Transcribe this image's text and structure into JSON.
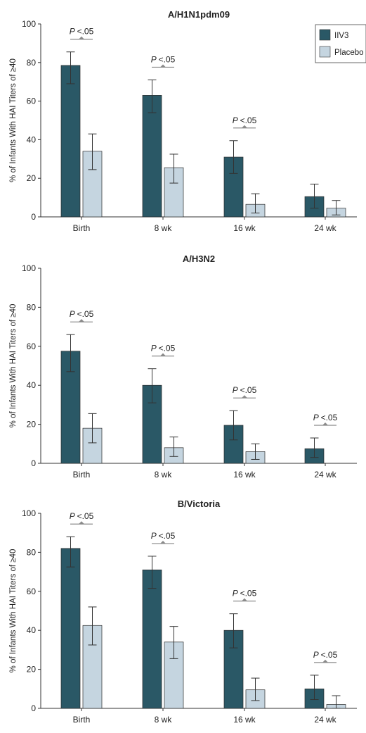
{
  "legend": [
    {
      "label": "IIV3",
      "color": "#2a5866"
    },
    {
      "label": "Placebo",
      "color": "#c5d5e0"
    }
  ],
  "ylabel": "% of Infants With HAI Titers of ≥40",
  "chart_data": [
    {
      "type": "bar",
      "title": "A/H1N1pdm09",
      "ylabel": "% of Infants With HAI Titers of ≥40",
      "ylim": [
        0,
        100
      ],
      "yticks": [
        0,
        20,
        40,
        60,
        80,
        100
      ],
      "categories": [
        "Birth",
        "8 wk",
        "16 wk",
        "24 wk"
      ],
      "series": [
        {
          "name": "IIV3",
          "color": "#2a5866",
          "values": [
            78.5,
            63,
            31,
            10.5
          ],
          "ci_low": [
            69,
            54,
            22.5,
            4.5
          ],
          "ci_high": [
            85.5,
            71,
            39.5,
            17
          ]
        },
        {
          "name": "Placebo",
          "color": "#c5d5e0",
          "values": [
            34,
            25.5,
            6.5,
            4.5
          ],
          "ci_low": [
            24.5,
            17.5,
            2,
            1
          ],
          "ci_high": [
            43,
            32.5,
            12,
            8.5
          ]
        }
      ],
      "significance": [
        {
          "category": "Birth",
          "label": "P <.05"
        },
        {
          "category": "8 wk",
          "label": "P <.05"
        },
        {
          "category": "16 wk",
          "label": "P <.05"
        }
      ]
    },
    {
      "type": "bar",
      "title": "A/H3N2",
      "ylabel": "% of Infants With HAI Titers of ≥40",
      "ylim": [
        0,
        100
      ],
      "yticks": [
        0,
        20,
        40,
        60,
        80,
        100
      ],
      "categories": [
        "Birth",
        "8 wk",
        "16 wk",
        "24 wk"
      ],
      "series": [
        {
          "name": "IIV3",
          "color": "#2a5866",
          "values": [
            57.5,
            40,
            19.5,
            7.5
          ],
          "ci_low": [
            47,
            31,
            12,
            3
          ],
          "ci_high": [
            66,
            48.5,
            27,
            13
          ]
        },
        {
          "name": "Placebo",
          "color": "#c5d5e0",
          "values": [
            18,
            8,
            6,
            0
          ],
          "ci_low": [
            10.5,
            3.5,
            2,
            0
          ],
          "ci_high": [
            25.5,
            13.5,
            10,
            0
          ]
        }
      ],
      "significance": [
        {
          "category": "Birth",
          "label": "P <.05"
        },
        {
          "category": "8 wk",
          "label": "P <.05"
        },
        {
          "category": "16 wk",
          "label": "P <.05"
        },
        {
          "category": "24 wk",
          "label": "P <.05"
        }
      ]
    },
    {
      "type": "bar",
      "title": "B/Victoria",
      "ylabel": "% of Infants With HAI Titers of ≥40",
      "ylim": [
        0,
        100
      ],
      "yticks": [
        0,
        20,
        40,
        60,
        80,
        100
      ],
      "categories": [
        "Birth",
        "8 wk",
        "16 wk",
        "24 wk"
      ],
      "series": [
        {
          "name": "IIV3",
          "color": "#2a5866",
          "values": [
            82,
            71,
            40,
            10
          ],
          "ci_low": [
            72.5,
            61.5,
            31,
            4.5
          ],
          "ci_high": [
            88,
            78,
            48.5,
            17
          ]
        },
        {
          "name": "Placebo",
          "color": "#c5d5e0",
          "values": [
            42.5,
            34,
            9.5,
            2
          ],
          "ci_low": [
            32.5,
            25.5,
            4,
            0
          ],
          "ci_high": [
            52,
            42,
            15.5,
            6.5
          ]
        }
      ],
      "significance": [
        {
          "category": "Birth",
          "label": "P <.05"
        },
        {
          "category": "8 wk",
          "label": "P <.05"
        },
        {
          "category": "16 wk",
          "label": "P <.05"
        },
        {
          "category": "24 wk",
          "label": "P <.05"
        }
      ]
    }
  ]
}
